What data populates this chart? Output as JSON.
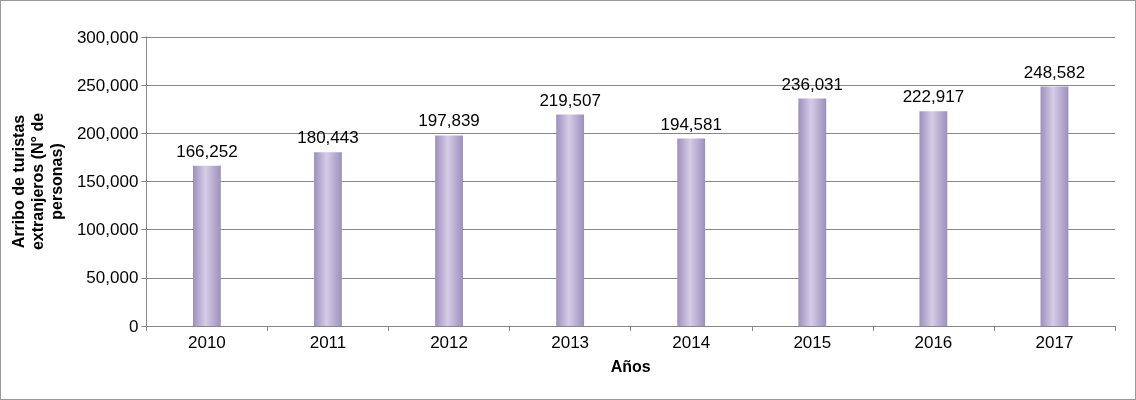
{
  "chart_data": {
    "type": "bar",
    "xlabel": "Años",
    "ylabel": "Arribo de turistas extranjeros (N° de personas)",
    "categories": [
      "2010",
      "2011",
      "2012",
      "2013",
      "2014",
      "2015",
      "2016",
      "2017"
    ],
    "values": [
      166252,
      180443,
      197839,
      219507,
      194581,
      236031,
      222917,
      248582
    ],
    "value_labels": [
      "166,252",
      "180,443",
      "197,839",
      "219,507",
      "194,581",
      "236,031",
      "222,917",
      "248,582"
    ],
    "color": "#9d8fbd",
    "ylim": [
      0,
      300000
    ],
    "yticks": [
      {
        "value": 0,
        "label": "0"
      },
      {
        "value": 50000,
        "label": "50,000"
      },
      {
        "value": 100000,
        "label": "100,000"
      },
      {
        "value": 150000,
        "label": "150,000"
      },
      {
        "value": 200000,
        "label": "200,000"
      },
      {
        "value": 250000,
        "label": "250,000"
      },
      {
        "value": 300000,
        "label": "300,000"
      }
    ],
    "grid": "y"
  }
}
